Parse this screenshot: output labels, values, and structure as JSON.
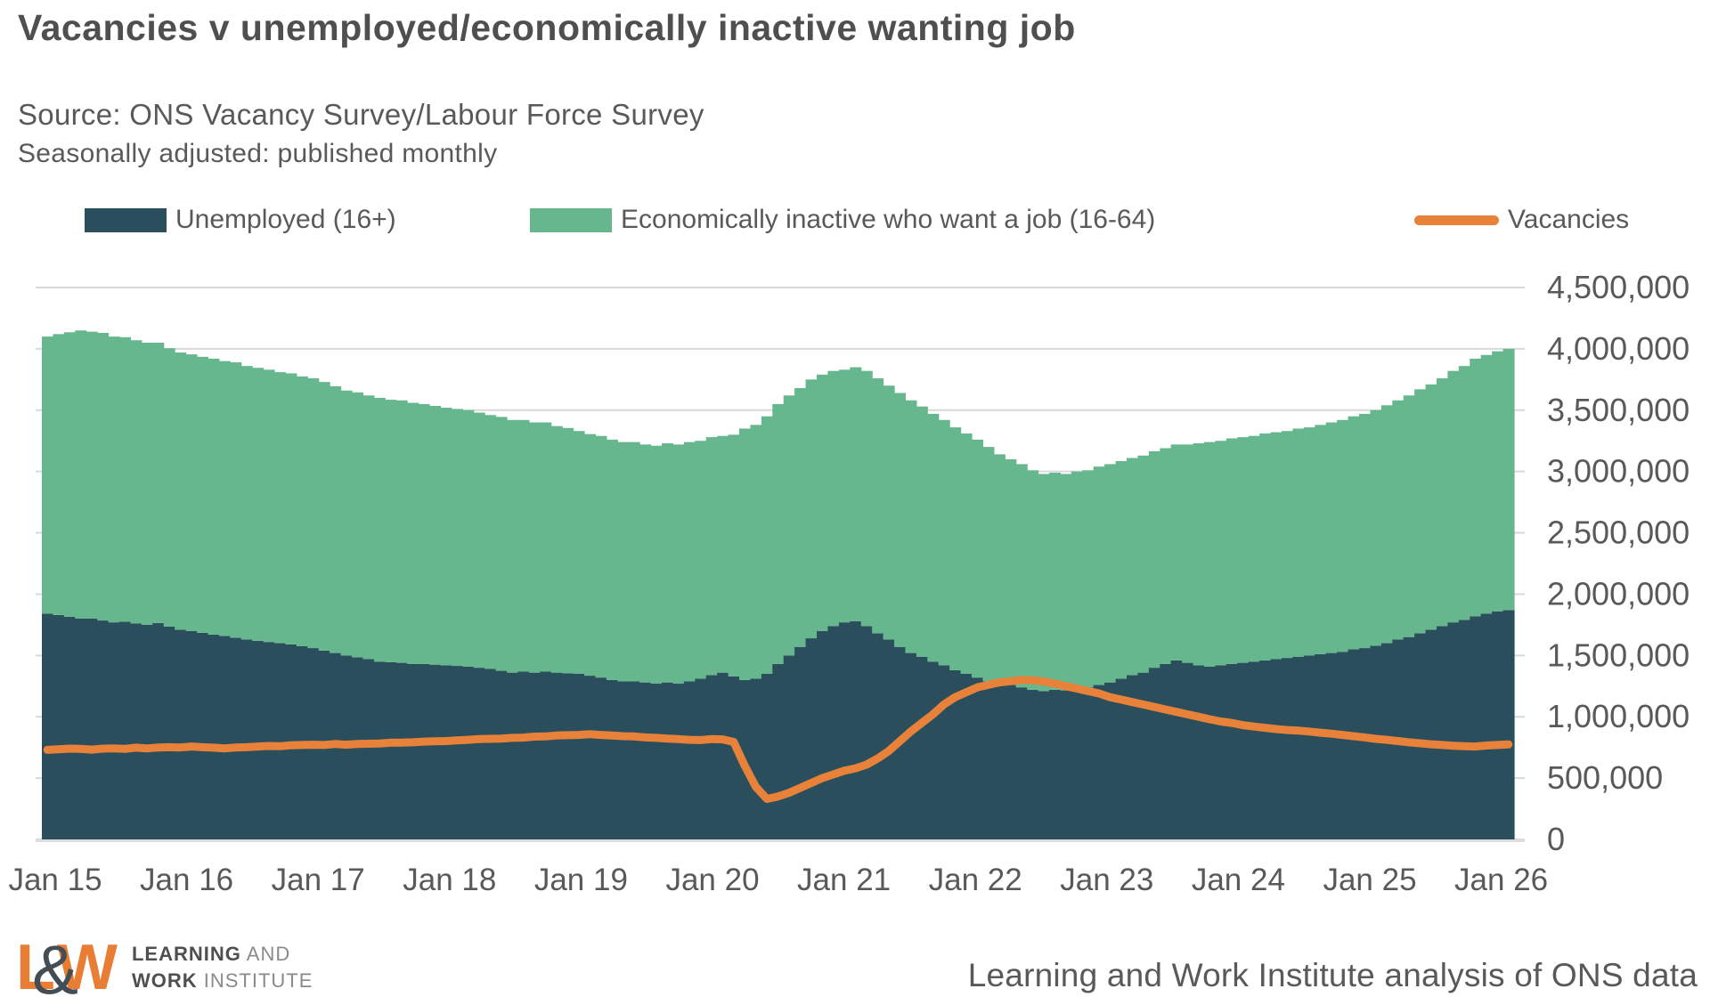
{
  "header": {
    "title": "Vacancies v unemployed/economically inactive wanting job",
    "source": "Source: ONS Vacancy Survey/Labour Force Survey",
    "note": "Seasonally adjusted: published monthly"
  },
  "legend": [
    {
      "label": "Unemployed (16+)",
      "color": "#2b4e5d",
      "marker": "square"
    },
    {
      "label": "Economically inactive who want a job (16-64)",
      "color": "#66b78d",
      "marker": "square"
    },
    {
      "label": "Vacancies",
      "color": "#e8813a",
      "marker": "line"
    }
  ],
  "footer": {
    "logo_l": "L",
    "logo_amp": "&",
    "logo_w": "W",
    "logo_line1_bold": "LEARNING",
    "logo_line1_rest": " AND",
    "logo_line2_bold": "WORK",
    "logo_line2_rest": " INSTITUTE",
    "credit": "Learning and Work Institute analysis of ONS data"
  },
  "chart_data": {
    "type": "bar",
    "subtype": "stacked-monthly-bars-with-line-overlay",
    "x_start": "Jan 2015",
    "x_step_months": 1,
    "n_points": 133,
    "x_tick_labels": [
      "Jan 15",
      "Jan 16",
      "Jan 17",
      "Jan 18",
      "Jan 19",
      "Jan 20",
      "Jan 21",
      "Jan 22",
      "Jan 23",
      "Jan 24",
      "Jan 25",
      "Jan 26"
    ],
    "y_ticks": [
      0,
      500000,
      1000000,
      1500000,
      2000000,
      2500000,
      3000000,
      3500000,
      4000000,
      4500000
    ],
    "y_tick_labels": [
      "0",
      "500,000",
      "1,000,000",
      "1,500,000",
      "2,000,000",
      "2,500,000",
      "3,000,000",
      "3,500,000",
      "4,000,000",
      "4,500,000"
    ],
    "ylim": [
      0,
      4500000
    ],
    "grid": true,
    "legend_position": "top",
    "colors": {
      "grid": "#d9d9d9",
      "axis_text": "#595959"
    },
    "series": [
      {
        "name": "Unemployed (16+)",
        "type": "bar-stacked",
        "color": "#2b4e5d",
        "values": [
          1840000,
          1830000,
          1815000,
          1800000,
          1800000,
          1785000,
          1770000,
          1775000,
          1760000,
          1750000,
          1765000,
          1735000,
          1710000,
          1700000,
          1685000,
          1670000,
          1660000,
          1645000,
          1630000,
          1620000,
          1610000,
          1600000,
          1590000,
          1575000,
          1560000,
          1540000,
          1520000,
          1500000,
          1485000,
          1470000,
          1450000,
          1445000,
          1440000,
          1430000,
          1430000,
          1425000,
          1420000,
          1415000,
          1410000,
          1400000,
          1390000,
          1375000,
          1360000,
          1370000,
          1360000,
          1370000,
          1360000,
          1355000,
          1350000,
          1335000,
          1320000,
          1300000,
          1290000,
          1290000,
          1280000,
          1270000,
          1280000,
          1270000,
          1290000,
          1310000,
          1340000,
          1360000,
          1330000,
          1300000,
          1310000,
          1350000,
          1430000,
          1500000,
          1570000,
          1640000,
          1700000,
          1740000,
          1770000,
          1780000,
          1740000,
          1680000,
          1630000,
          1570000,
          1520000,
          1490000,
          1450000,
          1420000,
          1380000,
          1350000,
          1320000,
          1290000,
          1270000,
          1260000,
          1240000,
          1220000,
          1210000,
          1220000,
          1215000,
          1230000,
          1240000,
          1260000,
          1280000,
          1310000,
          1340000,
          1360000,
          1400000,
          1430000,
          1460000,
          1440000,
          1420000,
          1410000,
          1420000,
          1430000,
          1440000,
          1450000,
          1460000,
          1470000,
          1480000,
          1490000,
          1500000,
          1510000,
          1520000,
          1530000,
          1550000,
          1560000,
          1580000,
          1600000,
          1630000,
          1650000,
          1680000,
          1710000,
          1740000,
          1770000,
          1790000,
          1820000,
          1840000,
          1860000,
          1870000
        ]
      },
      {
        "name": "Economically inactive who want a job (16-64)",
        "type": "bar-stacked",
        "color": "#66b78d",
        "values": [
          2260000,
          2290000,
          2320000,
          2350000,
          2340000,
          2345000,
          2330000,
          2320000,
          2310000,
          2300000,
          2285000,
          2270000,
          2260000,
          2255000,
          2250000,
          2250000,
          2240000,
          2245000,
          2230000,
          2225000,
          2220000,
          2210000,
          2210000,
          2200000,
          2200000,
          2190000,
          2175000,
          2160000,
          2160000,
          2150000,
          2150000,
          2140000,
          2140000,
          2130000,
          2120000,
          2110000,
          2100000,
          2095000,
          2090000,
          2080000,
          2070000,
          2070000,
          2060000,
          2050000,
          2040000,
          2030000,
          2010000,
          2000000,
          1980000,
          1970000,
          1970000,
          1960000,
          1950000,
          1950000,
          1940000,
          1940000,
          1950000,
          1950000,
          1950000,
          1940000,
          1940000,
          1930000,
          1970000,
          2050000,
          2070000,
          2100000,
          2120000,
          2120000,
          2110000,
          2110000,
          2090000,
          2080000,
          2060000,
          2070000,
          2080000,
          2080000,
          2070000,
          2070000,
          2060000,
          2040000,
          2020000,
          2000000,
          1980000,
          1960000,
          1940000,
          1910000,
          1870000,
          1840000,
          1820000,
          1790000,
          1770000,
          1770000,
          1765000,
          1770000,
          1770000,
          1780000,
          1780000,
          1775000,
          1770000,
          1770000,
          1765000,
          1760000,
          1760000,
          1780000,
          1810000,
          1830000,
          1830000,
          1840000,
          1840000,
          1840000,
          1850000,
          1850000,
          1850000,
          1860000,
          1860000,
          1870000,
          1880000,
          1890000,
          1900000,
          1910000,
          1920000,
          1940000,
          1950000,
          1970000,
          1990000,
          2000000,
          2020000,
          2050000,
          2070000,
          2100000,
          2110000,
          2120000,
          2130000
        ]
      },
      {
        "name": "Vacancies",
        "type": "line",
        "color": "#e8813a",
        "values": [
          730000,
          735000,
          740000,
          738000,
          732000,
          740000,
          742000,
          738000,
          748000,
          742000,
          750000,
          752000,
          750000,
          758000,
          752000,
          748000,
          742000,
          750000,
          752000,
          758000,
          762000,
          760000,
          768000,
          770000,
          772000,
          770000,
          778000,
          772000,
          778000,
          780000,
          782000,
          788000,
          790000,
          792000,
          798000,
          800000,
          802000,
          808000,
          812000,
          818000,
          820000,
          822000,
          828000,
          830000,
          838000,
          840000,
          848000,
          850000,
          852000,
          858000,
          852000,
          848000,
          842000,
          840000,
          832000,
          828000,
          822000,
          818000,
          812000,
          810000,
          818000,
          816000,
          795000,
          600000,
          430000,
          330000,
          350000,
          380000,
          420000,
          460000,
          500000,
          530000,
          560000,
          580000,
          610000,
          660000,
          720000,
          800000,
          880000,
          950000,
          1020000,
          1100000,
          1160000,
          1200000,
          1240000,
          1260000,
          1280000,
          1290000,
          1300000,
          1298000,
          1288000,
          1270000,
          1250000,
          1230000,
          1210000,
          1190000,
          1160000,
          1140000,
          1120000,
          1100000,
          1080000,
          1060000,
          1040000,
          1020000,
          1000000,
          980000,
          962000,
          950000,
          932000,
          920000,
          910000,
          900000,
          892000,
          888000,
          880000,
          870000,
          862000,
          852000,
          842000,
          832000,
          820000,
          812000,
          802000,
          792000,
          784000,
          776000,
          770000,
          764000,
          760000,
          758000,
          766000,
          770000,
          775000
        ]
      }
    ]
  }
}
